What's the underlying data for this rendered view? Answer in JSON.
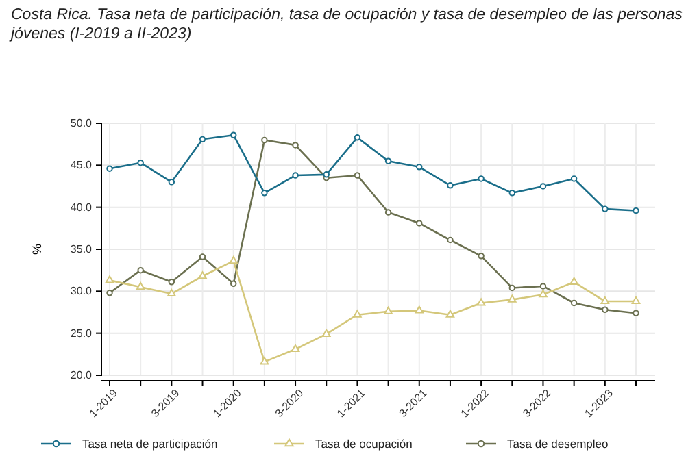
{
  "chart_data": {
    "type": "line",
    "title": "Costa Rica. Tasa neta de participación, tasa de ocupación y tasa de desempleo de las personas jóvenes (I-2019 a II-2023)",
    "categories": [
      "1-2019",
      null,
      "3-2019",
      null,
      "1-2020",
      null,
      "3-2020",
      null,
      "1-2021",
      null,
      "3-2021",
      null,
      "1-2022",
      null,
      "3-2022",
      null,
      "1-2023",
      null
    ],
    "ylabel": "%",
    "ylim": [
      20,
      50
    ],
    "yticks": [
      {
        "value": 20,
        "label": "20.0"
      },
      {
        "value": 25,
        "label": "25.0"
      },
      {
        "value": 30,
        "label": "30.0"
      },
      {
        "value": 35,
        "label": "35.0"
      },
      {
        "value": 40,
        "label": "40.0"
      },
      {
        "value": 45,
        "label": "45.0"
      },
      {
        "value": 50,
        "label": "50.0"
      }
    ],
    "grid": true,
    "legend": "bottom",
    "series": [
      {
        "name": "Tasa neta de participación",
        "color": "#1a6e8a",
        "marker": "circle",
        "values": [
          44.6,
          45.3,
          43.0,
          48.1,
          48.6,
          41.7,
          43.8,
          43.9,
          48.3,
          45.5,
          44.8,
          42.6,
          43.4,
          41.7,
          42.5,
          43.4,
          39.8,
          39.6
        ]
      },
      {
        "name": "Tasa de ocupación",
        "color": "#d4c77a",
        "marker": "triangle",
        "values": [
          31.3,
          30.5,
          29.7,
          31.8,
          33.6,
          21.6,
          23.1,
          24.9,
          27.2,
          27.6,
          27.7,
          27.2,
          28.6,
          29.0,
          29.6,
          31.1,
          28.8,
          28.8
        ]
      },
      {
        "name": "Tasa de desempleo",
        "color": "#6b7050",
        "marker": "circle",
        "values": [
          29.8,
          32.5,
          31.1,
          34.1,
          30.9,
          48.0,
          47.4,
          43.5,
          43.8,
          39.4,
          38.1,
          36.1,
          34.2,
          30.4,
          30.6,
          28.6,
          27.8,
          27.4
        ]
      }
    ]
  }
}
